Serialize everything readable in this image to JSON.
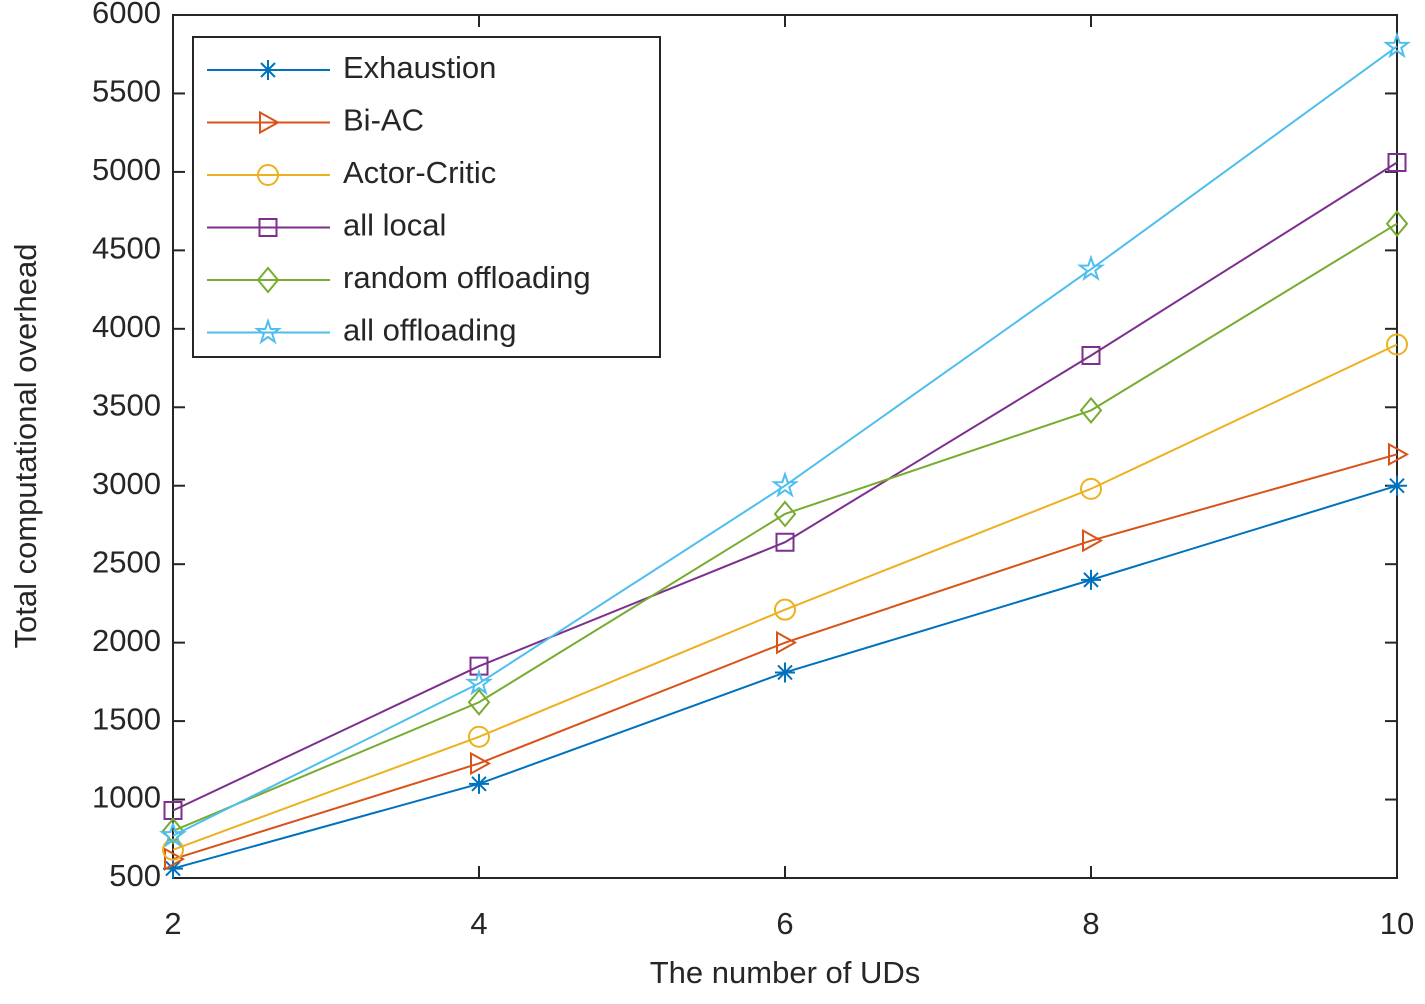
{
  "chart_data": {
    "type": "line",
    "x_label": "The number of UDs",
    "y_label": "Total computational overhead",
    "x": [
      2,
      4,
      6,
      8,
      10
    ],
    "xlim": [
      2,
      10
    ],
    "xticks": [
      2,
      4,
      6,
      8,
      10
    ],
    "ylim": [
      500,
      6000
    ],
    "yticks": [
      500,
      1000,
      1500,
      2000,
      2500,
      3000,
      3500,
      4000,
      4500,
      5000,
      5500,
      6000
    ],
    "grid": false,
    "legend": "upper left",
    "series": [
      {
        "name": "Exhaustion",
        "color": "#0072BD",
        "marker": "asterisk",
        "values": [
          560,
          1100,
          1810,
          2400,
          3000
        ]
      },
      {
        "name": "Bi-AC",
        "color": "#D95319",
        "marker": "triangle-right",
        "values": [
          620,
          1230,
          2000,
          2650,
          3200
        ]
      },
      {
        "name": "Actor-Critic",
        "color": "#EDB120",
        "marker": "circle",
        "values": [
          680,
          1400,
          2210,
          2980,
          3900
        ]
      },
      {
        "name": "all local",
        "color": "#7E2F8E",
        "marker": "square",
        "values": [
          930,
          1850,
          2640,
          3830,
          5060
        ]
      },
      {
        "name": "random offloading",
        "color": "#77AC30",
        "marker": "diamond",
        "values": [
          800,
          1620,
          2820,
          3480,
          4670
        ]
      },
      {
        "name": "all offloading",
        "color": "#4DBEEE",
        "marker": "pentagram",
        "values": [
          770,
          1740,
          3000,
          4380,
          5800
        ]
      }
    ]
  }
}
